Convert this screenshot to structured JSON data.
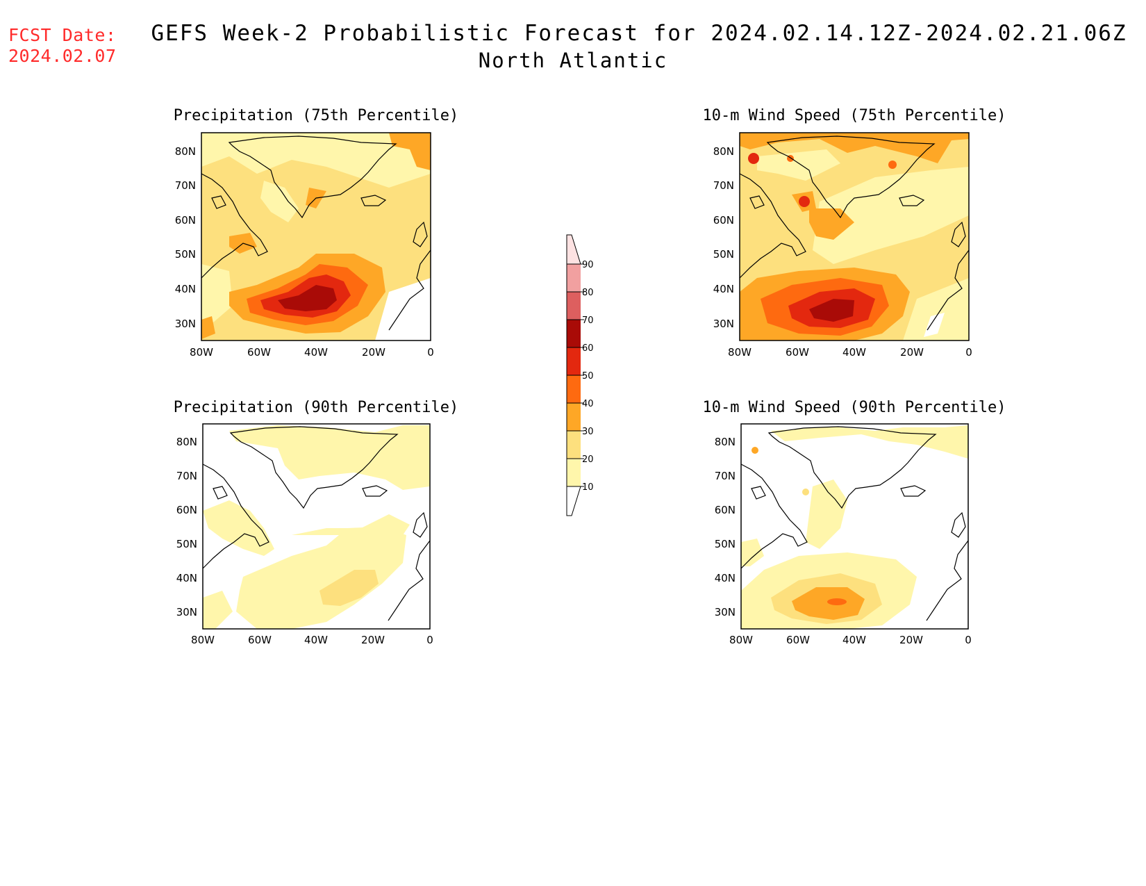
{
  "header": {
    "fcst_label": "FCST Date:",
    "fcst_date": "2024.02.07",
    "title": "GEFS Week-2 Probabilistic Forecast for 2024.02.14.12Z-2024.02.21.06Z",
    "subtitle": "North Atlantic"
  },
  "colors": {
    "bin_10_20": "#fff6ab",
    "bin_20_30": "#fde07e",
    "bin_30_40": "#fea726",
    "bin_40_50": "#fe6a10",
    "bin_50_60": "#e3280f",
    "bin_60_70": "#a90b07",
    "bin_70_80": "#dd5f5f",
    "bin_80_90": "#f1a0a0",
    "bin_90_100": "#fde2e2",
    "land_outline": "#000000"
  },
  "map_axes": {
    "lon_ticks": [
      "80W",
      "60W",
      "40W",
      "20W",
      "0"
    ],
    "lat_ticks": [
      "80N",
      "70N",
      "60N",
      "50N",
      "40N",
      "30N"
    ],
    "lon_range": [
      -80,
      0
    ],
    "lat_range": [
      25,
      85
    ]
  },
  "panels": [
    {
      "title": "Precipitation (75th Percentile)"
    },
    {
      "title": "10-m Wind Speed (75th Percentile)"
    },
    {
      "title": "Precipitation (90th Percentile)"
    },
    {
      "title": "10-m Wind Speed (90th Percentile)"
    }
  ],
  "colorbar": {
    "labels": [
      "10",
      "20",
      "30",
      "40",
      "50",
      "60",
      "70",
      "80",
      "90"
    ]
  }
}
